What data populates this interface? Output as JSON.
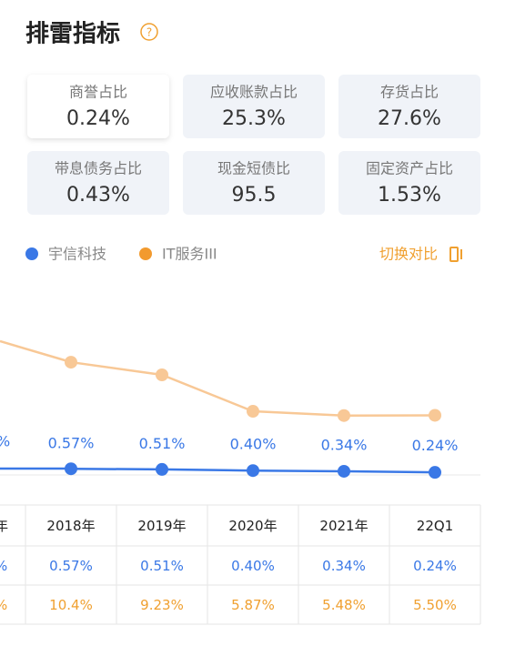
{
  "title": "排雷指标",
  "help": "?",
  "cards": [
    {
      "label": "商誉占比",
      "value": "0.24%"
    },
    {
      "label": "应收账款占比",
      "value": "25.3%"
    },
    {
      "label": "存货占比",
      "value": "27.6%"
    },
    {
      "label": "带息债务占比",
      "value": "0.43%"
    },
    {
      "label": "现金短债比",
      "value": "95.5"
    },
    {
      "label": "固定资产占比",
      "value": "1.53%"
    }
  ],
  "switch": "切换对比",
  "clipped": {
    "header": "年",
    "label": "%",
    "rows": [
      "%",
      "%"
    ]
  },
  "chart_data": {
    "type": "line",
    "categories": [
      "2018年",
      "2019年",
      "2020年",
      "2021年",
      "22Q1"
    ],
    "series": [
      {
        "name": "宇信科技",
        "color": "#3a78e6",
        "values": [
          0.57,
          0.51,
          0.4,
          0.34,
          0.24
        ],
        "value_labels": [
          "0.57%",
          "0.51%",
          "0.40%",
          "0.34%",
          "0.24%"
        ]
      },
      {
        "name": "IT服务III",
        "color": "#f8c896",
        "values": [
          10.4,
          9.23,
          5.87,
          5.48,
          5.5
        ],
        "value_labels": [
          "10.4%",
          "9.23%",
          "5.87%",
          "5.48%",
          "5.50%"
        ]
      }
    ],
    "ylim": [
      0,
      12
    ]
  }
}
